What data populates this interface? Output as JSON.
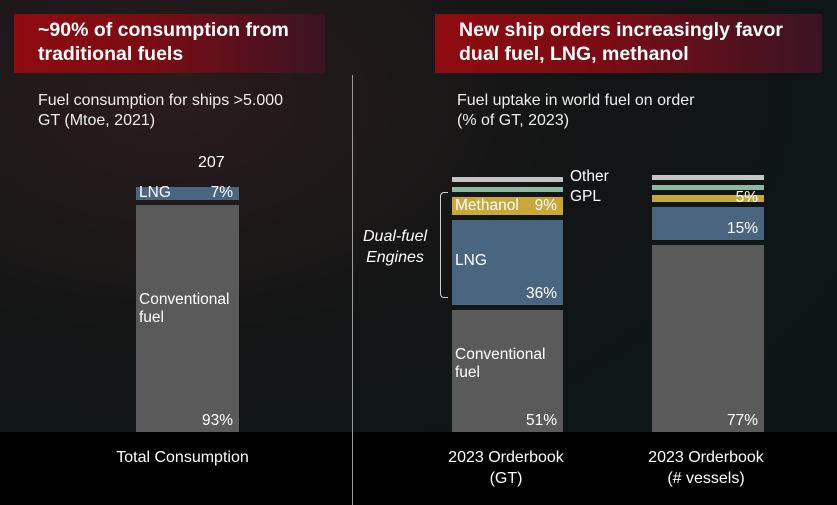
{
  "left": {
    "header": "~90% of consumption from traditional fuels",
    "subtitle_line1": "Fuel consumption for ships >5.000",
    "subtitle_line2": "GT (Mtoe, 2021)"
  },
  "right": {
    "header": "New ship orders increasingly favor dual fuel, LNG, methanol",
    "subtitle_line1": "Fuel uptake in world fuel on order",
    "subtitle_line2": "(% of GT, 2023)",
    "bracket_label_line1": "Dual-fuel",
    "bracket_label_line2": "Engines",
    "legend_other": "Other",
    "legend_gpl": "GPL"
  },
  "colors": {
    "conventional": "#5a5a5a",
    "lng": "#4a6580",
    "methanol": "#c9a83a",
    "gpl": "#8fb8a4",
    "other": "#c4c4c4",
    "header_red": "#8e0b10"
  },
  "chart_data": [
    {
      "type": "bar",
      "stacked": true,
      "title": "",
      "categories": [
        "Total Consumption"
      ],
      "total_label": "207",
      "series": [
        {
          "name": "Conventional fuel",
          "values": [
            93
          ],
          "label": "93%",
          "key": "conventional"
        },
        {
          "name": "LNG",
          "values": [
            7
          ],
          "label": "7%",
          "key": "lng"
        }
      ]
    },
    {
      "type": "bar",
      "stacked": true,
      "title": "",
      "categories": [
        "2023 Orderbook (GT)",
        "2023 Orderbook (# vessels)"
      ],
      "category_lines": [
        [
          "2023 Orderbook",
          "(GT)"
        ],
        [
          "2023 Orderbook",
          "(# vessels)"
        ]
      ],
      "series": [
        {
          "name": "Conventional fuel",
          "values": [
            51,
            77
          ],
          "labels": [
            "51%",
            "77%"
          ],
          "key": "conventional"
        },
        {
          "name": "LNG",
          "values": [
            36,
            15
          ],
          "labels": [
            "36%",
            "15%"
          ],
          "key": "lng"
        },
        {
          "name": "Methanol",
          "values": [
            9,
            5
          ],
          "labels": [
            "9%",
            "5%"
          ],
          "key": "methanol"
        },
        {
          "name": "GPL",
          "values": [
            2,
            2
          ],
          "labels": [
            "",
            ""
          ],
          "key": "gpl"
        },
        {
          "name": "Other",
          "values": [
            2,
            1
          ],
          "labels": [
            "",
            ""
          ],
          "key": "other"
        }
      ]
    }
  ]
}
